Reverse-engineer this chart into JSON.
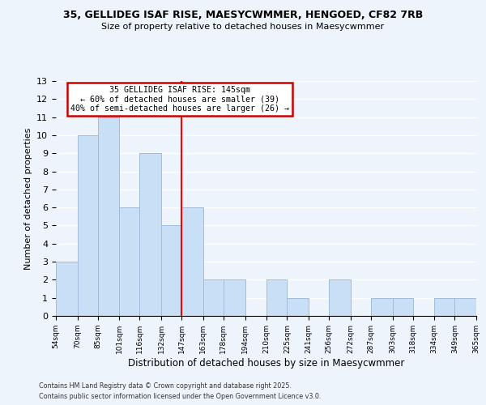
{
  "title1": "35, GELLIDEG ISAF RISE, MAESYCWMMER, HENGOED, CF82 7RB",
  "title2": "Size of property relative to detached houses in Maesycwmmer",
  "xlabel": "Distribution of detached houses by size in Maesycwmmer",
  "ylabel": "Number of detached properties",
  "bin_edges": [
    54,
    70,
    85,
    101,
    116,
    132,
    147,
    163,
    178,
    194,
    210,
    225,
    241,
    256,
    272,
    287,
    303,
    318,
    334,
    349,
    365
  ],
  "heights": [
    3,
    10,
    11,
    6,
    9,
    5,
    6,
    2,
    2,
    0,
    2,
    1,
    0,
    2,
    0,
    1,
    1,
    0,
    1,
    1
  ],
  "bar_color": "#c8dff5",
  "bar_edge_color": "#a0bcd8",
  "redline_x": 147,
  "annotation_title": "35 GELLIDEG ISAF RISE: 145sqm",
  "annotation_line1": "← 60% of detached houses are smaller (39)",
  "annotation_line2": "40% of semi-detached houses are larger (26) →",
  "annotation_box_color": "#ffffff",
  "annotation_border_color": "#cc0000",
  "ylim": [
    0,
    13
  ],
  "yticks": [
    0,
    1,
    2,
    3,
    4,
    5,
    6,
    7,
    8,
    9,
    10,
    11,
    12,
    13
  ],
  "tick_labels": [
    "54sqm",
    "70sqm",
    "85sqm",
    "101sqm",
    "116sqm",
    "132sqm",
    "147sqm",
    "163sqm",
    "178sqm",
    "194sqm",
    "210sqm",
    "225sqm",
    "241sqm",
    "256sqm",
    "272sqm",
    "287sqm",
    "303sqm",
    "318sqm",
    "334sqm",
    "349sqm",
    "365sqm"
  ],
  "footer1": "Contains HM Land Registry data © Crown copyright and database right 2025.",
  "footer2": "Contains public sector information licensed under the Open Government Licence v3.0.",
  "background_color": "#eef4fb",
  "grid_color": "#ffffff"
}
